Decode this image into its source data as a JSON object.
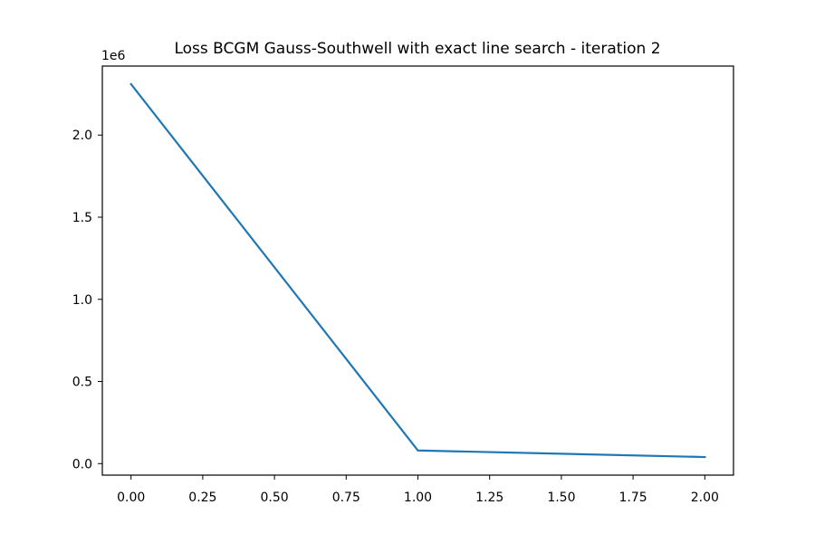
{
  "chart_data": {
    "type": "line",
    "title": "Loss BCGM Gauss-Southwell with exact line search - iteration 2",
    "xlabel": "",
    "ylabel": "",
    "y_offset_label": "1e6",
    "xlim": [
      -0.1,
      2.1
    ],
    "ylim": [
      -70000,
      2420000
    ],
    "grid": false,
    "x_ticks": [
      0.0,
      0.25,
      0.5,
      0.75,
      1.0,
      1.25,
      1.5,
      1.75,
      2.0
    ],
    "x_tick_labels": [
      "0.00",
      "0.25",
      "0.50",
      "0.75",
      "1.00",
      "1.25",
      "1.50",
      "1.75",
      "2.00"
    ],
    "y_ticks": [
      0,
      500000,
      1000000,
      1500000,
      2000000
    ],
    "y_tick_labels": [
      "0.0",
      "0.5",
      "1.0",
      "1.5",
      "2.0"
    ],
    "series": [
      {
        "color": "#1f77b4",
        "x": [
          0,
          1,
          2
        ],
        "y": [
          2310000,
          80000,
          40000
        ]
      }
    ]
  }
}
